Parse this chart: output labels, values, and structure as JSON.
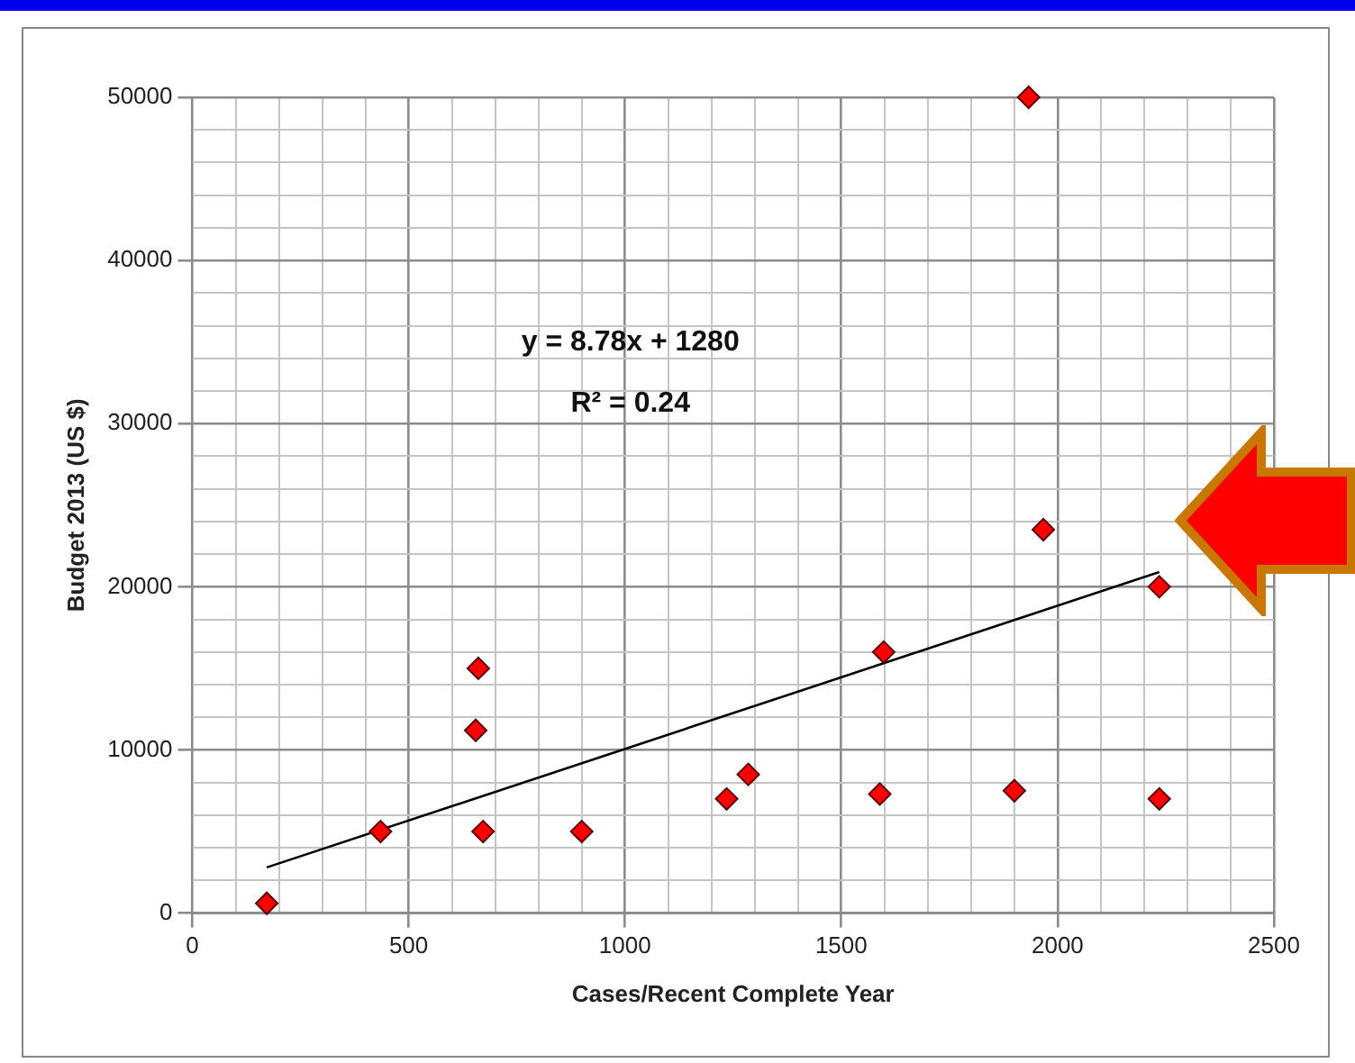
{
  "chart_data": {
    "type": "scatter",
    "xlabel": "Cases/Recent Complete Year",
    "ylabel": "Budget 2013 (US $)",
    "annotations": [
      "y = 8.78x + 1280",
      "R² = 0.24"
    ],
    "xlim": [
      0,
      2500
    ],
    "ylim": [
      0,
      50000
    ],
    "xticks": [
      0,
      {
        "value": 100,
        "label": null
      },
      {
        "value": 200,
        "label": null
      },
      {
        "value": 300,
        "label": null
      },
      {
        "value": 400,
        "label": null
      },
      500,
      {
        "value": 600,
        "label": null
      },
      {
        "value": 700,
        "label": null
      },
      {
        "value": 800,
        "label": null
      },
      {
        "value": 900,
        "label": null
      },
      1000,
      {
        "value": 1100,
        "label": null
      },
      {
        "value": 1200,
        "label": null
      },
      {
        "value": 1300,
        "label": null
      },
      {
        "value": 1400,
        "label": null
      },
      1500,
      {
        "value": 1600,
        "label": null
      },
      {
        "value": 1700,
        "label": null
      },
      {
        "value": 1800,
        "label": null
      },
      {
        "value": 1900,
        "label": null
      },
      2000,
      {
        "value": 2100,
        "label": null
      },
      {
        "value": 2200,
        "label": null
      },
      {
        "value": 2300,
        "label": null
      },
      {
        "value": 2400,
        "label": null
      },
      2500
    ],
    "yticks": [
      0,
      {
        "value": 2000,
        "label": null
      },
      {
        "value": 4000,
        "label": null
      },
      {
        "value": 6000,
        "label": null
      },
      {
        "value": 8000,
        "label": null
      },
      10000,
      {
        "value": 12000,
        "label": null
      },
      {
        "value": 14000,
        "label": null
      },
      {
        "value": 16000,
        "label": null
      },
      {
        "value": 18000,
        "label": null
      },
      20000,
      {
        "value": 22000,
        "label": null
      },
      {
        "value": 24000,
        "label": null
      },
      {
        "value": 26000,
        "label": null
      },
      {
        "value": 28000,
        "label": null
      },
      30000,
      {
        "value": 32000,
        "label": null
      },
      {
        "value": 34000,
        "label": null
      },
      {
        "value": 36000,
        "label": null
      },
      {
        "value": 38000,
        "label": null
      },
      40000,
      {
        "value": 42000,
        "label": null
      },
      {
        "value": 44000,
        "label": null
      },
      {
        "value": 46000,
        "label": null
      },
      {
        "value": 48000,
        "label": null
      },
      50000
    ],
    "grid": true,
    "legend": false,
    "marker": "diamond",
    "series": [
      {
        "type": "scatter",
        "color": "#ff0000",
        "x": [
          172,
          435,
          661,
          655,
          672,
          900,
          1235,
          1285,
          1598,
          1589,
          1900,
          1967,
          2235,
          2235,
          1933
        ],
        "values": [
          600,
          5000,
          15000,
          11200,
          5000,
          5000,
          7000,
          8500,
          16000,
          7300,
          7500,
          23500,
          20000,
          7000,
          50000
        ]
      },
      {
        "type": "line",
        "color": "#000000",
        "marker": "none",
        "line_style": "solid",
        "x": [
          172,
          2235
        ],
        "values": [
          2800,
          20900
        ]
      }
    ]
  }
}
